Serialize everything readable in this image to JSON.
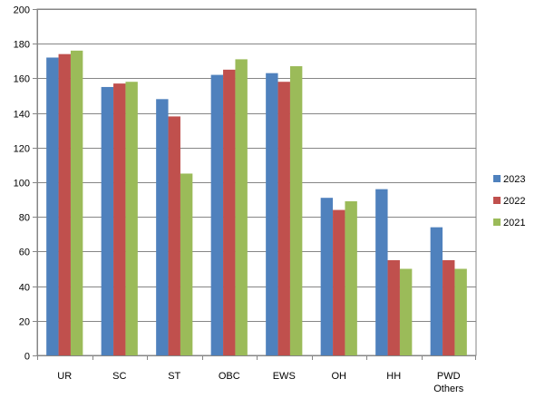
{
  "chart_data": {
    "type": "bar",
    "categories": [
      "UR",
      "SC",
      "ST",
      "OBC",
      "EWS",
      "OH",
      "HH",
      "PWD\nOthers"
    ],
    "series": [
      {
        "name": "2023",
        "color": "#4F81BD",
        "values": [
          172,
          155,
          148,
          162,
          163,
          91,
          96,
          74
        ]
      },
      {
        "name": "2022",
        "color": "#C0504D",
        "values": [
          174,
          157,
          138,
          165,
          158,
          84,
          55,
          55
        ]
      },
      {
        "name": "2021",
        "color": "#9BBB59",
        "values": [
          176,
          158,
          105,
          171,
          167,
          89,
          50,
          50
        ]
      }
    ],
    "ylim": [
      0,
      200
    ],
    "yticks": [
      0,
      20,
      40,
      60,
      80,
      100,
      120,
      140,
      160,
      180,
      200
    ],
    "grid": true,
    "legend": "right"
  }
}
